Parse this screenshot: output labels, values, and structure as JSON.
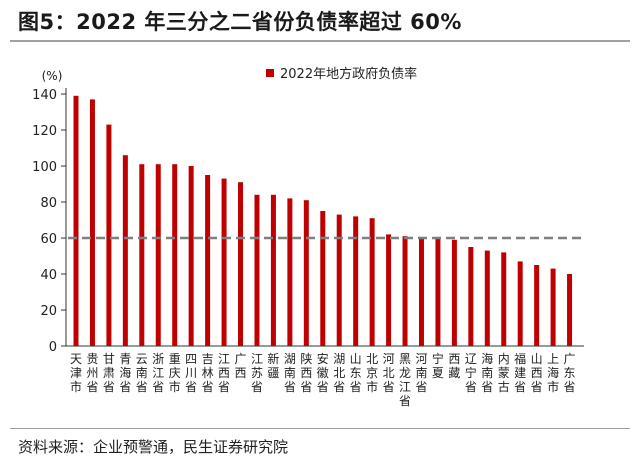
{
  "figure": {
    "title": "图5：2022 年三分之二省份负债率超过 60%",
    "source": "资料来源：企业预警通，民生证券研究院"
  },
  "colors": {
    "bar": "#c00000",
    "reference_line": "#7f7f7f",
    "axis": "#333333",
    "text": "#222222"
  },
  "chart_data": {
    "type": "bar",
    "title": "图5：2022 年三分之二省份负债率超过 60%",
    "ylabel": "(%)",
    "xlabel": "",
    "ylim": [
      0,
      140
    ],
    "yticks": [
      0,
      20,
      40,
      60,
      80,
      100,
      120,
      140
    ],
    "legend": {
      "label": "2022年地方政府负债率",
      "position": "top-right"
    },
    "reference_line": {
      "value": 60,
      "style": "dashed"
    },
    "categories": [
      "天津市",
      "贵州省",
      "甘肃省",
      "青海省",
      "云南省",
      "浙江省",
      "重庆市",
      "四川省",
      "吉林省",
      "江西省",
      "广西",
      "江苏省",
      "新疆",
      "湖南省",
      "陕西省",
      "安徽省",
      "湖北省",
      "山东省",
      "北京市",
      "河北省",
      "黑龙江省",
      "河南省",
      "宁夏",
      "西藏",
      "辽宁省",
      "海南省",
      "内蒙古",
      "福建省",
      "山西省",
      "上海市",
      "广东省"
    ],
    "values": [
      139,
      137,
      123,
      106,
      101,
      101,
      101,
      100,
      95,
      93,
      91,
      84,
      84,
      82,
      81,
      75,
      73,
      72,
      71,
      62,
      61,
      60,
      60,
      59,
      55,
      53,
      52,
      47,
      45,
      43,
      40
    ]
  }
}
